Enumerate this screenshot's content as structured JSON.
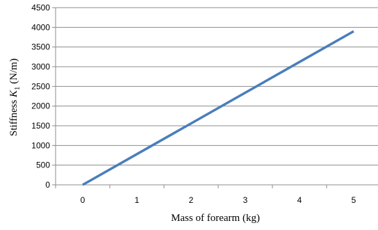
{
  "chart_data": {
    "type": "line",
    "x": [
      0,
      1,
      2,
      3,
      4,
      5
    ],
    "series": [
      {
        "values": [
          0,
          780,
          1560,
          2340,
          3120,
          3900
        ],
        "color": "#4a7ebb"
      }
    ],
    "x_ticks": [
      "0",
      "1",
      "2",
      "3",
      "4",
      "5"
    ],
    "y_ticks": [
      "0",
      "500",
      "1000",
      "1500",
      "2000",
      "2500",
      "3000",
      "3500",
      "4000",
      "4500"
    ],
    "xlabel": "Mass of forearm (kg)",
    "ylabel_prefix": "Stiffness ",
    "ylabel_symbol": "K",
    "ylabel_subscript": "1",
    "ylabel_suffix": " (N/m)",
    "xlim": [
      -0.5,
      5.5
    ],
    "ylim": [
      0,
      4500
    ],
    "grid": "horizontal",
    "legend": "none"
  }
}
